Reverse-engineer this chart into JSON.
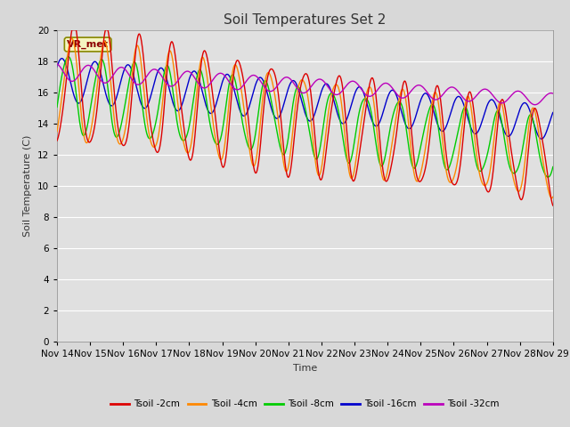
{
  "title": "Soil Temperatures Set 2",
  "xlabel": "Time",
  "ylabel": "Soil Temperature (C)",
  "xlim": [
    0,
    15
  ],
  "ylim": [
    0,
    20
  ],
  "yticks": [
    0,
    2,
    4,
    6,
    8,
    10,
    12,
    14,
    16,
    18,
    20
  ],
  "xtick_labels": [
    "Nov 14",
    "Nov 15",
    "Nov 16",
    "Nov 17",
    "Nov 18",
    "Nov 19",
    "Nov 20",
    "Nov 21",
    "Nov 22",
    "Nov 23",
    "Nov 24",
    "Nov 25",
    "Nov 26",
    "Nov 27",
    "Nov 28",
    "Nov 29"
  ],
  "series_colors": [
    "#dd0000",
    "#ff8800",
    "#00cc00",
    "#0000cc",
    "#bb00bb"
  ],
  "series_labels": [
    "Tsoil -2cm",
    "Tsoil -4cm",
    "Tsoil -8cm",
    "Tsoil -16cm",
    "Tsoil -32cm"
  ],
  "annotation_text": "VR_met",
  "bg_color": "#e0e0e0",
  "grid_color": "#ffffff",
  "title_fontsize": 11,
  "label_fontsize": 8,
  "tick_fontsize": 7.5,
  "fig_bg": "#d8d8d8"
}
